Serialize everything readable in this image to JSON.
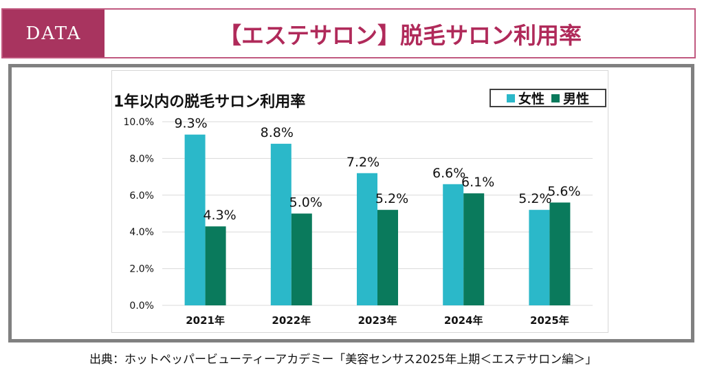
{
  "header": {
    "tag": "DATA",
    "title": "【エステサロン】脱毛サロン利用率"
  },
  "chart_data": {
    "type": "bar",
    "title": "1年以内の脱毛サロン利用率",
    "categories": [
      "2021年",
      "2022年",
      "2023年",
      "2024年",
      "2025年"
    ],
    "series": [
      {
        "name": "女性",
        "color": "#2bb8c9",
        "values": [
          9.3,
          8.8,
          7.2,
          6.6,
          5.2
        ],
        "labels": [
          "9.3%",
          "8.8%",
          "7.2%",
          "6.6%",
          "5.2%"
        ]
      },
      {
        "name": "男性",
        "color": "#0a7a5c",
        "values": [
          4.3,
          5.0,
          5.2,
          6.1,
          5.6
        ],
        "labels": [
          "4.3%",
          "5.0%",
          "5.2%",
          "6.1%",
          "5.6%"
        ]
      }
    ],
    "ylim": [
      0,
      10
    ],
    "yticks": [
      "0.0%",
      "2.0%",
      "4.0%",
      "6.0%",
      "8.0%",
      "10.0%"
    ],
    "grid": true,
    "legend_position": "top-right"
  },
  "source": "出典：ホットペッパービューティーアカデミー「美容センサス2025年上期＜エステサロン編＞」"
}
